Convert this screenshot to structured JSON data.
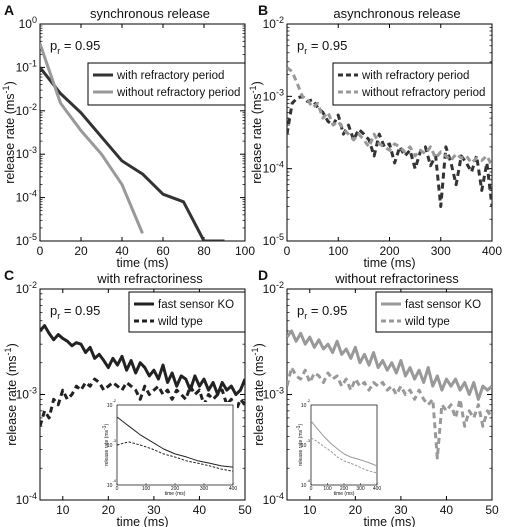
{
  "chart_data": [
    {
      "type": "line",
      "panel": "A",
      "title": "synchronous release",
      "annotation": "p",
      "annotation_sub": "r",
      "annotation_value": " = 0.95",
      "xlabel": "time (ms)",
      "ylabel": "release rate (ms",
      "ylabel_sup": "-1",
      "ylabel_end": ")",
      "xlim": [
        0,
        100
      ],
      "ylim_log10": [
        -5,
        0
      ],
      "log_y": true,
      "xticks": [
        0,
        20,
        40,
        60,
        80,
        100
      ],
      "yticks_exp": [
        -5,
        -4,
        -3,
        -2,
        -1,
        0
      ],
      "legend_position": "top-right",
      "series": [
        {
          "name": "with refractory period",
          "color": "#333333",
          "dash": "solid",
          "x": [
            0,
            10,
            20,
            30,
            40,
            50,
            60,
            70,
            80,
            90
          ],
          "y": [
            0.1,
            0.025,
            0.009,
            0.0025,
            0.0007,
            0.00035,
            0.00012,
            8e-05,
            1e-05,
            1e-05
          ]
        },
        {
          "name": "without refractory period",
          "color": "#999999",
          "dash": "solid",
          "x": [
            0,
            10,
            20,
            30,
            40,
            50
          ],
          "y": [
            0.35,
            0.015,
            0.0035,
            0.001,
            0.0002,
            1.5e-05
          ]
        }
      ]
    },
    {
      "type": "line",
      "panel": "B",
      "title": "asynchronous release",
      "annotation": "p",
      "annotation_sub": "r",
      "annotation_value": " = 0.95",
      "xlabel": "time (ms)",
      "ylabel": "release rate (ms",
      "ylabel_sup": "-1",
      "ylabel_end": ")",
      "xlim": [
        0,
        400
      ],
      "ylim_log10": [
        -5,
        -2
      ],
      "log_y": true,
      "xticks": [
        0,
        100,
        200,
        300,
        400
      ],
      "yticks_exp": [
        -5,
        -4,
        -3,
        -2
      ],
      "legend_position": "top-right",
      "series": [
        {
          "name": "with refractory period",
          "color": "#333333",
          "dash": "dashed",
          "x": [
            0,
            10,
            20,
            30,
            40,
            50,
            60,
            70,
            80,
            90,
            100,
            110,
            120,
            130,
            140,
            150,
            160,
            170,
            180,
            190,
            200,
            210,
            220,
            230,
            240,
            250,
            260,
            270,
            280,
            290,
            300,
            310,
            320,
            330,
            340,
            350,
            360,
            370,
            380,
            390,
            400
          ],
          "y": [
            0.0003,
            0.0008,
            0.00095,
            0.001,
            0.00085,
            0.0009,
            0.0007,
            0.0006,
            0.00045,
            0.0004,
            0.00055,
            0.0003,
            0.0004,
            0.00025,
            0.00035,
            0.0003,
            0.00025,
            0.00015,
            0.0003,
            0.0002,
            0.00022,
            0.00012,
            0.0002,
            0.00015,
            0.00018,
            0.0001,
            0.00017,
            0.0002,
            0.00011,
            0.00015,
            3e-05,
            0.0002,
            0.00012,
            6e-05,
            0.00015,
            0.00012,
            9e-05,
            0.00015,
            5e-05,
            0.00012,
            3e-05
          ]
        },
        {
          "name": "without refractory period",
          "color": "#999999",
          "dash": "dashed",
          "x": [
            0,
            10,
            20,
            30,
            40,
            50,
            60,
            70,
            80,
            90,
            100,
            110,
            120,
            130,
            140,
            150,
            160,
            170,
            180,
            190,
            200,
            210,
            220,
            230,
            240,
            250,
            260,
            270,
            280,
            290,
            300,
            310,
            320,
            330,
            340,
            350,
            360,
            370,
            380,
            390,
            400
          ],
          "y": [
            0.0025,
            0.0022,
            0.0015,
            0.001,
            0.0009,
            0.0007,
            0.0008,
            0.0005,
            0.0006,
            0.0004,
            0.00045,
            0.00035,
            0.0003,
            0.00025,
            0.0003,
            0.00025,
            0.0002,
            0.0003,
            0.00022,
            0.0002,
            0.00018,
            0.00022,
            0.0002,
            0.00017,
            0.0002,
            0.00015,
            0.00018,
            0.00016,
            0.0002,
            0.00014,
            0.00017,
            0.00015,
            0.00013,
            0.00016,
            0.00014,
            0.00015,
            0.00012,
            0.00014,
            0.00013,
            0.00015,
            0.00011
          ]
        }
      ]
    },
    {
      "type": "line",
      "panel": "C",
      "title": "with refractoriness",
      "annotation": "p",
      "annotation_sub": "r",
      "annotation_value": " = 0.95",
      "xlabel": "time (ms)",
      "ylabel": "release rate (ms",
      "ylabel_sup": "-1",
      "ylabel_end": ")",
      "xlim": [
        5,
        50
      ],
      "ylim_log10": [
        -4,
        -2
      ],
      "log_y": true,
      "xticks": [
        10,
        20,
        30,
        40,
        50
      ],
      "yticks_exp": [
        -4,
        -3,
        -2
      ],
      "legend_position": "top-right",
      "series": [
        {
          "name": "fast sensor KO",
          "color": "#222222",
          "dash": "solid",
          "x": [
            5,
            6,
            7,
            8,
            9,
            10,
            11,
            12,
            13,
            14,
            15,
            16,
            17,
            18,
            19,
            20,
            21,
            22,
            23,
            24,
            25,
            26,
            27,
            28,
            29,
            30,
            31,
            32,
            33,
            34,
            35,
            36,
            37,
            38,
            39,
            40,
            41,
            42,
            43,
            44,
            45,
            46,
            47,
            48,
            49,
            50
          ],
          "y": [
            0.004,
            0.0045,
            0.0038,
            0.0033,
            0.0037,
            0.0034,
            0.0032,
            0.0029,
            0.0031,
            0.003,
            0.0025,
            0.0028,
            0.0022,
            0.0024,
            0.0021,
            0.0018,
            0.0022,
            0.0019,
            0.0023,
            0.0017,
            0.0021,
            0.0016,
            0.002,
            0.0018,
            0.0015,
            0.0017,
            0.0014,
            0.0019,
            0.0013,
            0.0016,
            0.0012,
            0.0015,
            0.0014,
            0.0011,
            0.0015,
            0.0012,
            0.0014,
            0.0011,
            0.0013,
            0.001,
            0.0013,
            0.0011,
            0.0012,
            0.001,
            0.0011,
            0.0014
          ]
        },
        {
          "name": "wild type",
          "color": "#222222",
          "dash": "dashed",
          "x": [
            5,
            6,
            7,
            8,
            9,
            10,
            11,
            12,
            13,
            14,
            15,
            16,
            17,
            18,
            19,
            20,
            21,
            22,
            23,
            24,
            25,
            26,
            27,
            28,
            29,
            30,
            31,
            32,
            33,
            34,
            35,
            36,
            37,
            38,
            39,
            40,
            41,
            42,
            43,
            44,
            45,
            46,
            47,
            48,
            49,
            50
          ],
          "y": [
            0.0005,
            0.0007,
            0.0006,
            0.0009,
            0.0008,
            0.0011,
            0.0009,
            0.001,
            0.0012,
            0.0011,
            0.0013,
            0.0012,
            0.0014,
            0.0013,
            0.0011,
            0.0012,
            0.0013,
            0.0012,
            0.0011,
            0.0013,
            0.0012,
            0.0011,
            0.0009,
            0.0012,
            0.001,
            0.0011,
            0.0012,
            0.001,
            0.0011,
            0.0009,
            0.0011,
            0.001,
            0.0009,
            0.0012,
            0.001,
            0.0011,
            0.0008,
            0.001,
            0.0009,
            0.001,
            0.0011,
            0.0008,
            0.0009,
            0.0007,
            0.0009,
            0.0008
          ]
        }
      ],
      "inset": {
        "xticks": [
          0,
          100,
          200,
          300,
          400
        ],
        "xlabel": "time (ms)",
        "ylabel": "release rate (ms",
        "ylabel_sup": "-1",
        "ylabel_end": ")",
        "xlim": [
          0,
          400
        ],
        "ylim_log10": [
          -4,
          -2
        ],
        "series": [
          {
            "color": "#222222",
            "dash": "solid",
            "x": [
              0,
              40,
              80,
              120,
              160,
              200,
              240,
              280,
              320,
              360,
              400
            ],
            "y": [
              0.005,
              0.003,
              0.0018,
              0.0012,
              0.0008,
              0.0006,
              0.0005,
              0.0004,
              0.00035,
              0.0003,
              0.00028
            ]
          },
          {
            "color": "#222222",
            "dash": "dashed",
            "x": [
              0,
              40,
              80,
              120,
              160,
              200,
              240,
              280,
              320,
              360,
              400
            ],
            "y": [
              0.001,
              0.0012,
              0.001,
              0.0008,
              0.0006,
              0.0005,
              0.0004,
              0.00035,
              0.0003,
              0.00025,
              0.00022
            ]
          }
        ]
      }
    },
    {
      "type": "line",
      "panel": "D",
      "title": "without refractoriness",
      "annotation": "p",
      "annotation_sub": "r",
      "annotation_value": " = 0.95",
      "xlabel": "time (ms)",
      "ylabel": "release rate (ms",
      "ylabel_sup": "-1",
      "ylabel_end": ")",
      "xlim": [
        5,
        50
      ],
      "ylim_log10": [
        -4,
        -2
      ],
      "log_y": true,
      "xticks": [
        10,
        20,
        30,
        40,
        50
      ],
      "yticks_exp": [
        -4,
        -3,
        -2
      ],
      "legend_position": "top-right",
      "series": [
        {
          "name": "fast sensor KO",
          "color": "#999999",
          "dash": "solid",
          "x": [
            5,
            6,
            7,
            8,
            9,
            10,
            11,
            12,
            13,
            14,
            15,
            16,
            17,
            18,
            19,
            20,
            21,
            22,
            23,
            24,
            25,
            26,
            27,
            28,
            29,
            30,
            31,
            32,
            33,
            34,
            35,
            36,
            37,
            38,
            39,
            40,
            41,
            42,
            43,
            44,
            45,
            46,
            47,
            48,
            49,
            50
          ],
          "y": [
            0.0035,
            0.004,
            0.0032,
            0.0038,
            0.003,
            0.0035,
            0.0028,
            0.0033,
            0.0027,
            0.003,
            0.0025,
            0.0032,
            0.0024,
            0.0027,
            0.0022,
            0.0028,
            0.002,
            0.0024,
            0.0019,
            0.0025,
            0.0018,
            0.0021,
            0.0017,
            0.002,
            0.0016,
            0.0021,
            0.0015,
            0.0018,
            0.0014,
            0.0017,
            0.0013,
            0.0018,
            0.0012,
            0.0015,
            0.0011,
            0.0014,
            0.0012,
            0.0014,
            0.0011,
            0.0013,
            0.001,
            0.0013,
            0.0009,
            0.0012,
            0.0011,
            0.0012
          ]
        },
        {
          "name": "wild type",
          "color": "#999999",
          "dash": "dashed",
          "x": [
            5,
            6,
            7,
            8,
            9,
            10,
            11,
            12,
            13,
            14,
            15,
            16,
            17,
            18,
            19,
            20,
            21,
            22,
            23,
            24,
            25,
            26,
            27,
            28,
            29,
            30,
            31,
            32,
            33,
            34,
            35,
            36,
            37,
            38,
            39,
            40,
            41,
            42,
            43,
            44,
            45,
            46,
            47,
            48,
            49,
            50
          ],
          "y": [
            0.0012,
            0.0018,
            0.0015,
            0.0014,
            0.0017,
            0.0013,
            0.0016,
            0.0015,
            0.0013,
            0.0016,
            0.0014,
            0.0015,
            0.0012,
            0.0014,
            0.0011,
            0.0014,
            0.0012,
            0.0013,
            0.0011,
            0.0013,
            0.0012,
            0.0013,
            0.0011,
            0.0012,
            0.001,
            0.0012,
            0.001,
            0.0011,
            0.0009,
            0.0011,
            0.0009,
            0.0008,
            0.0009,
            0.00025,
            0.0008,
            0.0007,
            0.0008,
            0.0006,
            0.0009,
            0.0005,
            0.0007,
            0.0006,
            0.0008,
            0.0005,
            0.0007,
            0.0006
          ]
        }
      ],
      "inset": {
        "xticks": [
          0,
          100,
          200,
          300,
          400
        ],
        "xlabel": "time (ms)",
        "ylabel": "release rate (ms",
        "ylabel_sup": "-1",
        "ylabel_end": ")",
        "xlim": [
          0,
          400
        ],
        "ylim_log10": [
          -4,
          -2
        ],
        "series": [
          {
            "color": "#999999",
            "dash": "solid",
            "x": [
              0,
              40,
              80,
              120,
              160,
              200,
              240,
              280,
              320,
              360,
              400
            ],
            "y": [
              0.004,
              0.0025,
              0.0016,
              0.0011,
              0.0008,
              0.0006,
              0.0005,
              0.00045,
              0.0004,
              0.00035,
              0.0003
            ]
          },
          {
            "color": "#999999",
            "dash": "dashed",
            "x": [
              0,
              40,
              80,
              120,
              160,
              200,
              240,
              280,
              320,
              360,
              400
            ],
            "y": [
              0.0015,
              0.0012,
              0.0009,
              0.0007,
              0.0005,
              0.0004,
              0.00035,
              0.0003,
              0.00025,
              0.00022,
              0.0002
            ]
          }
        ]
      }
    }
  ]
}
